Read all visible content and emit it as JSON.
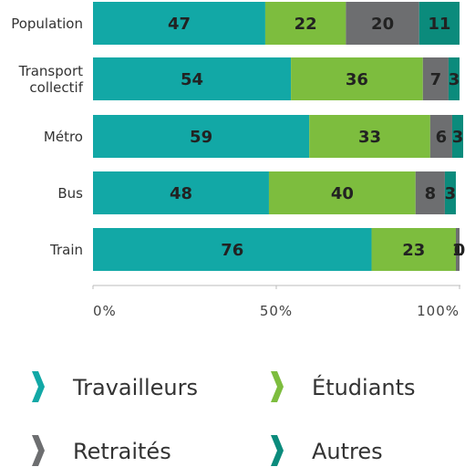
{
  "chart_data": {
    "type": "stacked-bar-horizontal",
    "categories": [
      "Population",
      "Transport collectif",
      "Métro",
      "Bus",
      "Train"
    ],
    "series": [
      {
        "name": "Travailleurs",
        "color": "#12a8a6",
        "values": [
          47,
          54,
          59,
          48,
          76
        ]
      },
      {
        "name": "Étudiants",
        "color": "#7dbd3e",
        "values": [
          22,
          36,
          33,
          40,
          23
        ]
      },
      {
        "name": "Retraités",
        "color": "#6d6e70",
        "values": [
          20,
          7,
          6,
          8,
          1
        ]
      },
      {
        "name": "Autres",
        "color": "#0b8b7c",
        "values": [
          11,
          3,
          3,
          3,
          0
        ]
      }
    ],
    "xlim": [
      0,
      100
    ],
    "xticks": [
      {
        "value": 0,
        "label": "0%"
      },
      {
        "value": 50,
        "label": "50%"
      },
      {
        "value": 100,
        "label": "100%"
      }
    ]
  }
}
